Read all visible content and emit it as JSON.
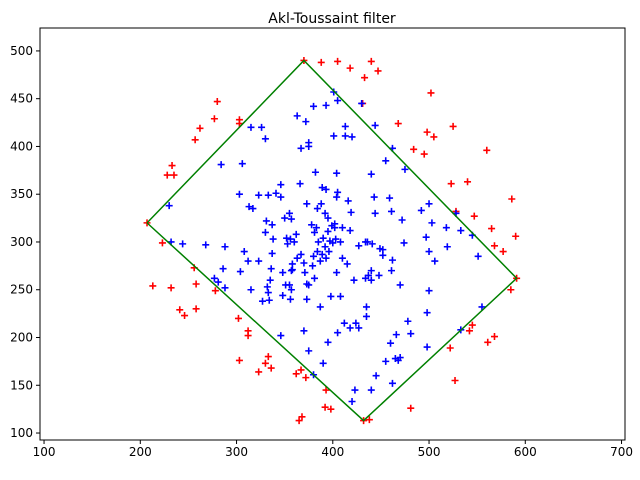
{
  "chart_data": {
    "type": "scatter",
    "title": "Akl-Toussaint filter",
    "xlim": [
      95.8,
      703.6
    ],
    "ylim": [
      92.7,
      524
    ],
    "xticks": [
      100,
      200,
      300,
      400,
      500,
      600,
      700
    ],
    "yticks": [
      100,
      150,
      200,
      250,
      300,
      350,
      400,
      450,
      500
    ],
    "series": [
      {
        "kind": "scatter",
        "marker": "+",
        "color": "#ff0000",
        "x": [
          370,
          388,
          405,
          418,
          440,
          447,
          433,
          431,
          280,
          277,
          262,
          257,
          303,
          303,
          468,
          502,
          498,
          505,
          495,
          484,
          525,
          560,
          523,
          540,
          547,
          528,
          586,
          590,
          565,
          568,
          577,
          591,
          585,
          568,
          561,
          545,
          542,
          522,
          527,
          481,
          438,
          432,
          398,
          392,
          393,
          367,
          362,
          372,
          368,
          365,
          333,
          336,
          330,
          323,
          312,
          312,
          302,
          303,
          258,
          246,
          241,
          258,
          278,
          256,
          232,
          213,
          223,
          207,
          233,
          228,
          235
        ],
        "values": [
          490,
          488,
          489,
          482,
          489,
          479,
          472,
          445,
          447,
          429,
          419,
          407,
          428,
          424,
          424,
          456,
          415,
          410,
          392,
          397,
          421,
          396,
          361,
          363,
          327,
          332,
          345,
          306,
          314,
          296,
          290,
          262,
          250,
          201,
          195,
          213,
          207,
          189,
          155,
          126,
          114,
          113,
          125,
          127,
          145,
          166,
          162,
          158,
          117,
          113,
          180,
          168,
          173,
          164,
          207,
          202,
          220,
          176,
          230,
          223,
          229,
          256,
          249,
          273,
          252,
          254,
          299,
          320,
          380,
          370,
          370
        ]
      },
      {
        "kind": "scatter",
        "marker": "+",
        "color": "#0000ff",
        "x": [
          401,
          405,
          380,
          393,
          430,
          326,
          363,
          372,
          413,
          401,
          413,
          420,
          375,
          367,
          375,
          444,
          462,
          455,
          475,
          440,
          315,
          330,
          284,
          306,
          346,
          366,
          389,
          393,
          404,
          382,
          404,
          405,
          443,
          459,
          444,
          461,
          472,
          492,
          500,
          503,
          518,
          528,
          533,
          519,
          551,
          497,
          500,
          506,
          474,
          449,
          452,
          441,
          436,
          427,
          418,
          410,
          402,
          419,
          416,
          434,
          373,
          384,
          388,
          395,
          392,
          378,
          381,
          383,
          385,
          390,
          392,
          396,
          397,
          399,
          402,
          403,
          408,
          400,
          395,
          389,
          384,
          380,
          387,
          393,
          379,
          371,
          370,
          367,
          358,
          362,
          360,
          353,
          356,
          352,
          350,
          355,
          346,
          341,
          333,
          323,
          317,
          331,
          337,
          337,
          323,
          312,
          308,
          315,
          335,
          332,
          333,
          327,
          334,
          336,
          348,
          355,
          357,
          348,
          356,
          373,
          387,
          398,
          404,
          410,
          415,
          422,
          434,
          437,
          440,
          440,
          448,
          452,
          462,
          461,
          470,
          478,
          500,
          498,
          498,
          481,
          466,
          460,
          455,
          465,
          468,
          445,
          462,
          470,
          427,
          435,
          435,
          424,
          418,
          408,
          405,
          412,
          395,
          390,
          380,
          375,
          370,
          346,
          304,
          286,
          268,
          288,
          232,
          244,
          230,
          281,
          277,
          288,
          303,
          313,
          330,
          338,
          357,
          381,
          375,
          373,
          357,
          358,
          363,
          351,
          423,
          440,
          420,
          533,
          555,
          545
        ],
        "values": [
          457,
          448,
          442,
          443,
          445,
          420,
          432,
          426,
          421,
          411,
          411,
          410,
          404,
          398,
          400,
          422,
          398,
          385,
          376,
          371,
          420,
          408,
          381,
          382,
          360,
          361,
          357,
          355,
          372,
          373,
          347,
          352,
          347,
          346,
          330,
          332,
          323,
          333,
          340,
          320,
          315,
          330,
          312,
          295,
          285,
          305,
          290,
          280,
          299,
          293,
          292,
          298,
          300,
          296,
          312,
          315,
          315,
          331,
          343,
          300,
          340,
          335,
          340,
          325,
          330,
          318,
          310,
          315,
          300,
          304,
          295,
          290,
          301,
          317,
          319,
          303,
          300,
          299,
          311,
          287,
          290,
          285,
          280,
          283,
          275,
          268,
          278,
          287,
          271,
          308,
          300,
          298,
          303,
          304,
          325,
          330,
          347,
          351,
          349,
          349,
          335,
          322,
          318,
          288,
          280,
          280,
          290,
          250,
          260,
          253,
          247,
          238,
          239,
          272,
          268,
          255,
          250,
          244,
          240,
          240,
          232,
          243,
          268,
          283,
          277,
          260,
          262,
          265,
          260,
          270,
          265,
          286,
          281,
          270,
          255,
          217,
          249,
          226,
          190,
          204,
          203,
          194,
          175,
          178,
          176,
          160,
          152,
          179,
          210,
          222,
          232,
          215,
          210,
          243,
          205,
          215,
          195,
          173,
          161,
          186,
          207,
          202,
          269,
          272,
          297,
          295,
          300,
          298,
          338,
          258,
          262,
          252,
          350,
          337,
          310,
          303,
          324,
          262,
          255,
          256,
          270,
          277,
          283,
          255,
          145,
          145,
          133,
          208,
          232,
          307
        ]
      },
      {
        "kind": "line",
        "color": "#008000",
        "x": [
          207,
          370,
          591,
          432,
          207
        ],
        "values": [
          320,
          490,
          262,
          113,
          320
        ]
      }
    ]
  }
}
